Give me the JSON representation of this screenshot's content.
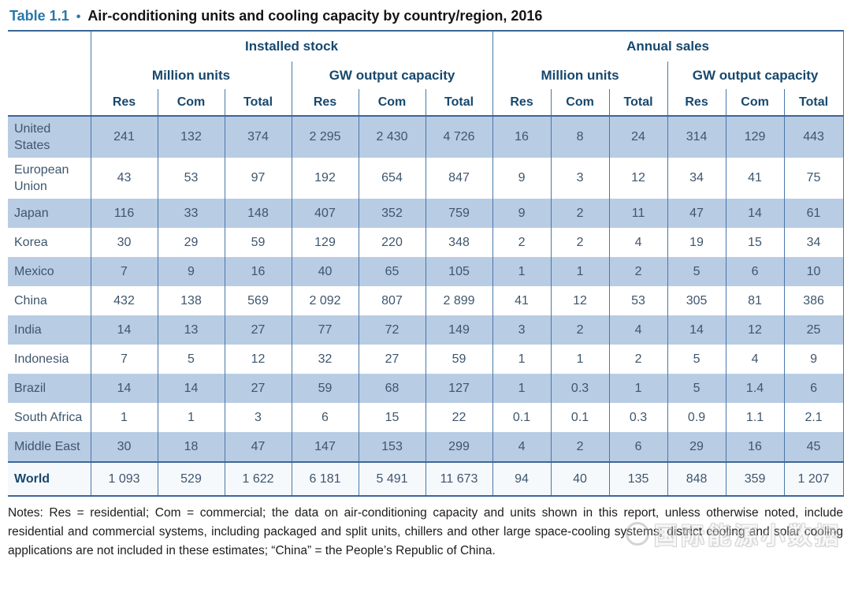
{
  "title": {
    "label": "Table 1.1",
    "bullet": "•",
    "text": "Air-conditioning units and cooling capacity by country/region, 2016"
  },
  "table": {
    "group_headers": [
      "Installed stock",
      "Annual sales"
    ],
    "subgroup_headers": [
      "Million units",
      "GW output capacity",
      "Million units",
      "GW output capacity"
    ],
    "col_headers": [
      "Res",
      "Com",
      "Total",
      "Res",
      "Com",
      "Total",
      "Res",
      "Com",
      "Total",
      "Res",
      "Com",
      "Total"
    ],
    "rows": [
      {
        "country": "United States",
        "shaded": true,
        "values": [
          "241",
          "132",
          "374",
          "2 295",
          "2 430",
          "4 726",
          "16",
          "8",
          "24",
          "314",
          "129",
          "443"
        ]
      },
      {
        "country": "European Union",
        "shaded": false,
        "values": [
          "43",
          "53",
          "97",
          "192",
          "654",
          "847",
          "9",
          "3",
          "12",
          "34",
          "41",
          "75"
        ]
      },
      {
        "country": "Japan",
        "shaded": true,
        "values": [
          "116",
          "33",
          "148",
          "407",
          "352",
          "759",
          "9",
          "2",
          "11",
          "47",
          "14",
          "61"
        ]
      },
      {
        "country": "Korea",
        "shaded": false,
        "values": [
          "30",
          "29",
          "59",
          "129",
          "220",
          "348",
          "2",
          "2",
          "4",
          "19",
          "15",
          "34"
        ]
      },
      {
        "country": "Mexico",
        "shaded": true,
        "values": [
          "7",
          "9",
          "16",
          "40",
          "65",
          "105",
          "1",
          "1",
          "2",
          "5",
          "6",
          "10"
        ]
      },
      {
        "country": "China",
        "shaded": false,
        "values": [
          "432",
          "138",
          "569",
          "2 092",
          "807",
          "2 899",
          "41",
          "12",
          "53",
          "305",
          "81",
          "386"
        ]
      },
      {
        "country": "India",
        "shaded": true,
        "values": [
          "14",
          "13",
          "27",
          "77",
          "72",
          "149",
          "3",
          "2",
          "4",
          "14",
          "12",
          "25"
        ]
      },
      {
        "country": "Indonesia",
        "shaded": false,
        "values": [
          "7",
          "5",
          "12",
          "32",
          "27",
          "59",
          "1",
          "1",
          "2",
          "5",
          "4",
          "9"
        ]
      },
      {
        "country": "Brazil",
        "shaded": true,
        "values": [
          "14",
          "14",
          "27",
          "59",
          "68",
          "127",
          "1",
          "0.3",
          "1",
          "5",
          "1.4",
          "6"
        ]
      },
      {
        "country": "South Africa",
        "shaded": false,
        "values": [
          "1",
          "1",
          "3",
          "6",
          "15",
          "22",
          "0.1",
          "0.1",
          "0.3",
          "0.9",
          "1.1",
          "2.1"
        ]
      },
      {
        "country": "Middle East",
        "shaded": true,
        "values": [
          "30",
          "18",
          "47",
          "147",
          "153",
          "299",
          "4",
          "2",
          "6",
          "29",
          "16",
          "45"
        ]
      }
    ],
    "total_row": {
      "country": "World",
      "values": [
        "1 093",
        "529",
        "1 622",
        "6 181",
        "5 491",
        "11 673",
        "94",
        "40",
        "135",
        "848",
        "359",
        "1 207"
      ]
    }
  },
  "notes": "Notes: Res = residential; Com = commercial; the data on air-conditioning capacity and units shown in this report, unless otherwise noted, include residential and commercial systems, including packaged and split units, chillers and other large space-cooling systems; district cooling and solar cooling applications are not included in these estimates; “China” = the People’s Republic of China.",
  "watermark": {
    "text": "国际能源小数据"
  },
  "colors": {
    "accent_blue": "#2878a8",
    "header_text": "#17486e",
    "cell_text": "#3e566e",
    "row_shade": "#b8cce4",
    "border": "#4a77a8",
    "heavy_border": "#3c6695"
  },
  "chart_data": {
    "type": "table",
    "title": "Table 1.1 • Air-conditioning units and cooling capacity by country/region, 2016",
    "column_groups": [
      {
        "group": "Installed stock",
        "subgroups": [
          {
            "name": "Million units",
            "columns": [
              "Res",
              "Com",
              "Total"
            ]
          },
          {
            "name": "GW output capacity",
            "columns": [
              "Res",
              "Com",
              "Total"
            ]
          }
        ]
      },
      {
        "group": "Annual sales",
        "subgroups": [
          {
            "name": "Million units",
            "columns": [
              "Res",
              "Com",
              "Total"
            ]
          },
          {
            "name": "GW output capacity",
            "columns": [
              "Res",
              "Com",
              "Total"
            ]
          }
        ]
      }
    ],
    "rows": [
      {
        "country": "United States",
        "installed_stock_million_units": [
          241,
          132,
          374
        ],
        "installed_stock_gw": [
          2295,
          2430,
          4726
        ],
        "annual_sales_million_units": [
          16,
          8,
          24
        ],
        "annual_sales_gw": [
          314,
          129,
          443
        ]
      },
      {
        "country": "European Union",
        "installed_stock_million_units": [
          43,
          53,
          97
        ],
        "installed_stock_gw": [
          192,
          654,
          847
        ],
        "annual_sales_million_units": [
          9,
          3,
          12
        ],
        "annual_sales_gw": [
          34,
          41,
          75
        ]
      },
      {
        "country": "Japan",
        "installed_stock_million_units": [
          116,
          33,
          148
        ],
        "installed_stock_gw": [
          407,
          352,
          759
        ],
        "annual_sales_million_units": [
          9,
          2,
          11
        ],
        "annual_sales_gw": [
          47,
          14,
          61
        ]
      },
      {
        "country": "Korea",
        "installed_stock_million_units": [
          30,
          29,
          59
        ],
        "installed_stock_gw": [
          129,
          220,
          348
        ],
        "annual_sales_million_units": [
          2,
          2,
          4
        ],
        "annual_sales_gw": [
          19,
          15,
          34
        ]
      },
      {
        "country": "Mexico",
        "installed_stock_million_units": [
          7,
          9,
          16
        ],
        "installed_stock_gw": [
          40,
          65,
          105
        ],
        "annual_sales_million_units": [
          1,
          1,
          2
        ],
        "annual_sales_gw": [
          5,
          6,
          10
        ]
      },
      {
        "country": "China",
        "installed_stock_million_units": [
          432,
          138,
          569
        ],
        "installed_stock_gw": [
          2092,
          807,
          2899
        ],
        "annual_sales_million_units": [
          41,
          12,
          53
        ],
        "annual_sales_gw": [
          305,
          81,
          386
        ]
      },
      {
        "country": "India",
        "installed_stock_million_units": [
          14,
          13,
          27
        ],
        "installed_stock_gw": [
          77,
          72,
          149
        ],
        "annual_sales_million_units": [
          3,
          2,
          4
        ],
        "annual_sales_gw": [
          14,
          12,
          25
        ]
      },
      {
        "country": "Indonesia",
        "installed_stock_million_units": [
          7,
          5,
          12
        ],
        "installed_stock_gw": [
          32,
          27,
          59
        ],
        "annual_sales_million_units": [
          1,
          1,
          2
        ],
        "annual_sales_gw": [
          5,
          4,
          9
        ]
      },
      {
        "country": "Brazil",
        "installed_stock_million_units": [
          14,
          14,
          27
        ],
        "installed_stock_gw": [
          59,
          68,
          127
        ],
        "annual_sales_million_units": [
          1,
          0.3,
          1
        ],
        "annual_sales_gw": [
          5,
          1.4,
          6
        ]
      },
      {
        "country": "South Africa",
        "installed_stock_million_units": [
          1,
          1,
          3
        ],
        "installed_stock_gw": [
          6,
          15,
          22
        ],
        "annual_sales_million_units": [
          0.1,
          0.1,
          0.3
        ],
        "annual_sales_gw": [
          0.9,
          1.1,
          2.1
        ]
      },
      {
        "country": "Middle East",
        "installed_stock_million_units": [
          30,
          18,
          47
        ],
        "installed_stock_gw": [
          147,
          153,
          299
        ],
        "annual_sales_million_units": [
          4,
          2,
          6
        ],
        "annual_sales_gw": [
          29,
          16,
          45
        ]
      },
      {
        "country": "World",
        "installed_stock_million_units": [
          1093,
          529,
          1622
        ],
        "installed_stock_gw": [
          6181,
          5491,
          11673
        ],
        "annual_sales_million_units": [
          94,
          40,
          135
        ],
        "annual_sales_gw": [
          848,
          359,
          1207
        ]
      }
    ]
  }
}
